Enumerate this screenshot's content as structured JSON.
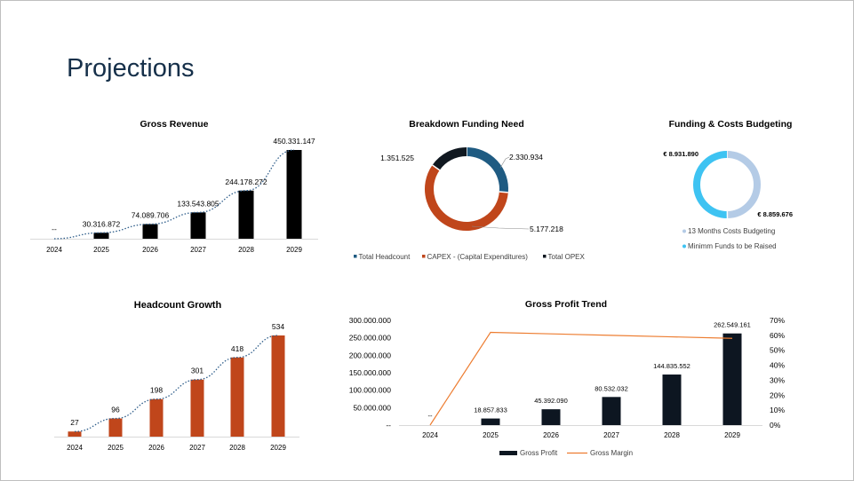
{
  "page": {
    "title": "Projections"
  },
  "colors": {
    "navy": "#16304a",
    "black_bar": "#000000",
    "dark_bar": "#0d1621",
    "orange_bar": "#c0461b",
    "dotted": "#2e5d8a",
    "donut_teal": "#1f5b82",
    "donut_orange": "#c0461b",
    "donut_dark": "#101820",
    "light_blue": "#b4cbe6",
    "cyan": "#3ec3f2",
    "margin_line": "#ed7d31"
  },
  "chart_data": [
    {
      "id": "gross-revenue",
      "type": "bar",
      "title": "Gross Revenue",
      "categories": [
        "2024",
        "2025",
        "2026",
        "2027",
        "2028",
        "2029"
      ],
      "values": [
        0,
        30316872,
        74089706,
        133543805,
        244178272,
        450331147
      ],
      "data_labels": [
        "--",
        "30.316.872",
        "74.089.706",
        "133.543.805",
        "244.178.272",
        "450.331.147"
      ],
      "trendline": "dotted",
      "ylim": [
        0,
        450331147
      ]
    },
    {
      "id": "funding-need",
      "type": "pie",
      "title": "Breakdown Funding Need",
      "labels": [
        "Total Headcount",
        "CAPEX - (Capital Expenditures)",
        "Total OPEX"
      ],
      "values": [
        2330934,
        5177218,
        1351525
      ],
      "data_labels": [
        "2.330.934",
        "5.177.218",
        "1.351.525"
      ],
      "legend": "bottom"
    },
    {
      "id": "funding-costs",
      "type": "pie",
      "title": "Funding & Costs Budgeting",
      "labels": [
        "13 Months Costs Budgeting",
        "Minimm Funds to be Raised"
      ],
      "values": [
        8859676,
        8931890
      ],
      "data_labels": [
        "€ 8.859.676",
        "€ 8.931.890"
      ],
      "legend": "bottom"
    },
    {
      "id": "headcount-growth",
      "type": "bar",
      "title": "Headcount Growth",
      "categories": [
        "2024",
        "2025",
        "2026",
        "2027",
        "2028",
        "2029"
      ],
      "values": [
        27,
        96,
        198,
        301,
        418,
        534
      ],
      "data_labels": [
        "27",
        "96",
        "198",
        "301",
        "418",
        "534"
      ],
      "trendline": "dotted",
      "ylim": [
        0,
        534
      ]
    },
    {
      "id": "gross-profit-trend",
      "type": "bar",
      "title": "Gross Profit Trend",
      "categories": [
        "2024",
        "2025",
        "2026",
        "2027",
        "2028",
        "2029"
      ],
      "series": [
        {
          "name": "Gross Profit",
          "type": "bar",
          "values": [
            0,
            18857833,
            45392090,
            80532032,
            144835552,
            262549161
          ]
        },
        {
          "name": "Gross Margin",
          "type": "line",
          "axis": "right",
          "values": [
            0,
            62,
            61,
            60,
            59,
            58
          ]
        }
      ],
      "data_labels": [
        "--",
        "18.857.833",
        "45.392.090",
        "80.532.032",
        "144.835.552",
        "262.549.161"
      ],
      "y_ticks": [
        "--",
        "50.000.000",
        "100.000.000",
        "150.000.000",
        "200.000.000",
        "250.000.000",
        "300.000.000"
      ],
      "y2_ticks": [
        "0%",
        "10%",
        "20%",
        "30%",
        "40%",
        "50%",
        "60%",
        "70%"
      ],
      "ylim": [
        0,
        300000000
      ],
      "y2lim": [
        0,
        70
      ],
      "legend": "bottom"
    }
  ]
}
